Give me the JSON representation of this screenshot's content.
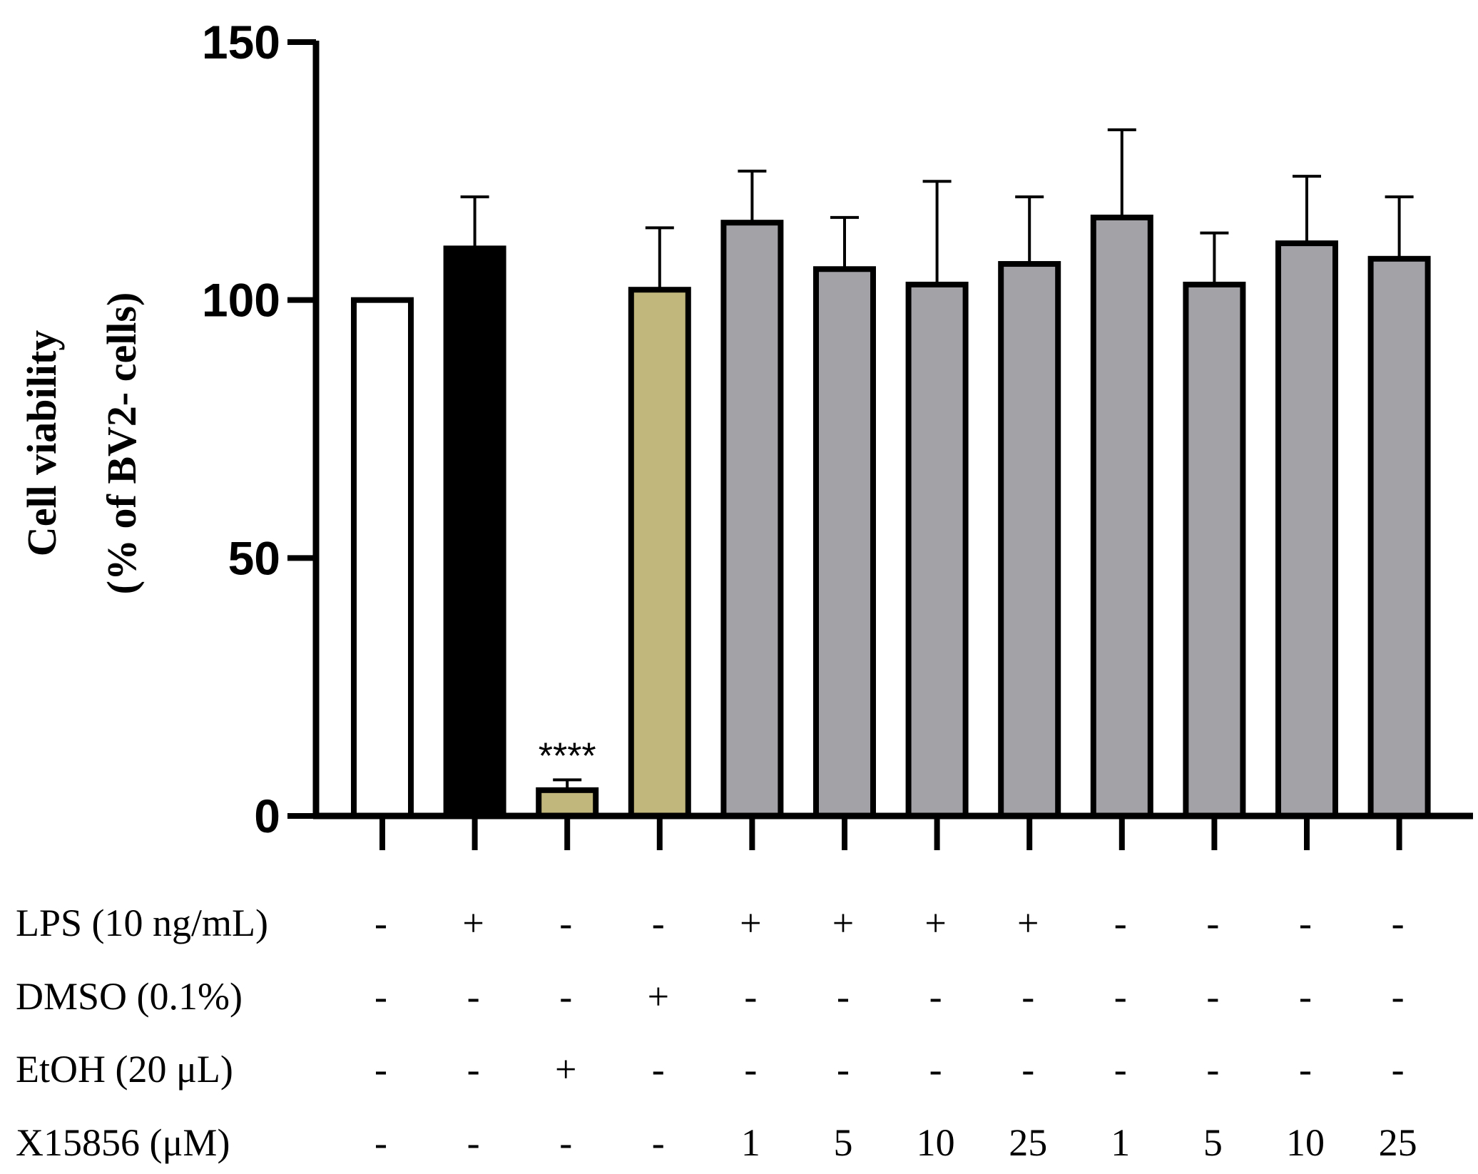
{
  "chart_data": {
    "type": "bar",
    "title": "",
    "xlabel": "",
    "ylabel_line1": "Cell viability",
    "ylabel_line2": "(% of BV2- cells)",
    "ylim": [
      0,
      150
    ],
    "yticks": [
      0,
      50,
      100,
      150
    ],
    "ytick_labels": [
      "0",
      "50",
      "100",
      "150"
    ],
    "grid": false,
    "legend": "none",
    "bars": [
      {
        "value": 100,
        "error": 0,
        "color": "#ffffff"
      },
      {
        "value": 110,
        "error": 10,
        "color": "#000000"
      },
      {
        "value": 5,
        "error": 2,
        "color": "#c1b67c",
        "annotation": "****"
      },
      {
        "value": 102,
        "error": 12,
        "color": "#c1b67c"
      },
      {
        "value": 115,
        "error": 10,
        "color": "#a3a2a7"
      },
      {
        "value": 106,
        "error": 10,
        "color": "#a3a2a7"
      },
      {
        "value": 103,
        "error": 20,
        "color": "#a3a2a7"
      },
      {
        "value": 107,
        "error": 13,
        "color": "#a3a2a7"
      },
      {
        "value": 116,
        "error": 17,
        "color": "#a3a2a7"
      },
      {
        "value": 103,
        "error": 10,
        "color": "#a3a2a7"
      },
      {
        "value": 111,
        "error": 13,
        "color": "#a3a2a7"
      },
      {
        "value": 108,
        "error": 12,
        "color": "#a3a2a7"
      }
    ],
    "conditions": [
      {
        "label": "LPS (10 ng/mL)",
        "values": [
          "-",
          "+",
          "-",
          "-",
          "+",
          "+",
          "+",
          "+",
          "-",
          "-",
          "-",
          "-"
        ]
      },
      {
        "label": "DMSO (0.1%)",
        "values": [
          "-",
          "-",
          "-",
          "+",
          "-",
          "-",
          "-",
          "-",
          "-",
          "-",
          "-",
          "-"
        ]
      },
      {
        "label": "EtOH (20 μL)",
        "values": [
          "-",
          "-",
          "+",
          "-",
          "-",
          "-",
          "-",
          "-",
          "-",
          "-",
          "-",
          "-"
        ]
      },
      {
        "label": "X15856 (μM)",
        "values": [
          "-",
          "-",
          "-",
          "-",
          "1",
          "5",
          "10",
          "25",
          "1",
          "5",
          "10",
          "25"
        ]
      }
    ]
  }
}
